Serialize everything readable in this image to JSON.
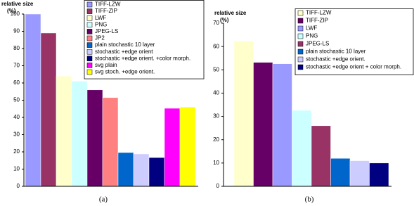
{
  "chart_data": [
    {
      "type": "bar",
      "ylabel": "relative size",
      "yunit": "(%)",
      "caption": "(a)",
      "ylim": [
        0,
        100
      ],
      "yticks": [
        0,
        10,
        20,
        30,
        40,
        50,
        60,
        70,
        80,
        90,
        100
      ],
      "series": [
        {
          "name": "TIFF-LZW",
          "color": "#9999ff",
          "values": [
            100
          ]
        },
        {
          "name": "TIFF-ZIP",
          "color": "#993366",
          "values": [
            89
          ]
        },
        {
          "name": "LWF",
          "color": "#ffffcc",
          "values": [
            64
          ]
        },
        {
          "name": "PNG",
          "color": "#ccffff",
          "values": [
            61
          ]
        },
        {
          "name": "JPEG-LS",
          "color": "#660066",
          "values": [
            56
          ]
        },
        {
          "name": "JP2",
          "color": "#ff8080",
          "values": [
            51.5
          ]
        },
        {
          "name": "plain stochastic 10 layer",
          "color": "#0066cc",
          "values": [
            19.6
          ]
        },
        {
          "name": "stochastic +edge orient",
          "color": "#ccccff",
          "values": [
            18.8
          ]
        },
        {
          "name": "stochastic +edge orient. +color morph.",
          "color": "#000080",
          "values": [
            16.7
          ]
        },
        {
          "name": "svg plain",
          "color": "#ff00ff",
          "values": [
            45.3
          ]
        },
        {
          "name": "svg stoch. +edge orient.",
          "color": "#ffff00",
          "values": [
            46
          ]
        }
      ]
    },
    {
      "type": "bar",
      "ylabel": "relative size",
      "yunit": "(%)",
      "caption": "(b)",
      "ylim": [
        0,
        70
      ],
      "yticks": [
        0,
        10,
        20,
        30,
        40,
        50,
        60,
        70
      ],
      "series": [
        {
          "name": "TIFF-LZW",
          "color": "#ffffcc",
          "values": [
            62.3
          ]
        },
        {
          "name": "TIFF-ZIP",
          "color": "#660066",
          "values": [
            53.2
          ]
        },
        {
          "name": "LWF",
          "color": "#9999ff",
          "values": [
            52.6
          ]
        },
        {
          "name": "PNG",
          "color": "#ccffff",
          "values": [
            32.6
          ]
        },
        {
          "name": "JPEG-LS",
          "color": "#993366",
          "values": [
            26
          ]
        },
        {
          "name": "plain stochastic 10 layer",
          "color": "#0066cc",
          "values": [
            12
          ]
        },
        {
          "name": "stochastic +edge orient.",
          "color": "#ccccff",
          "values": [
            11
          ]
        },
        {
          "name": "stochastic +edge orient + color morph.",
          "color": "#000080",
          "values": [
            10
          ]
        }
      ]
    }
  ]
}
